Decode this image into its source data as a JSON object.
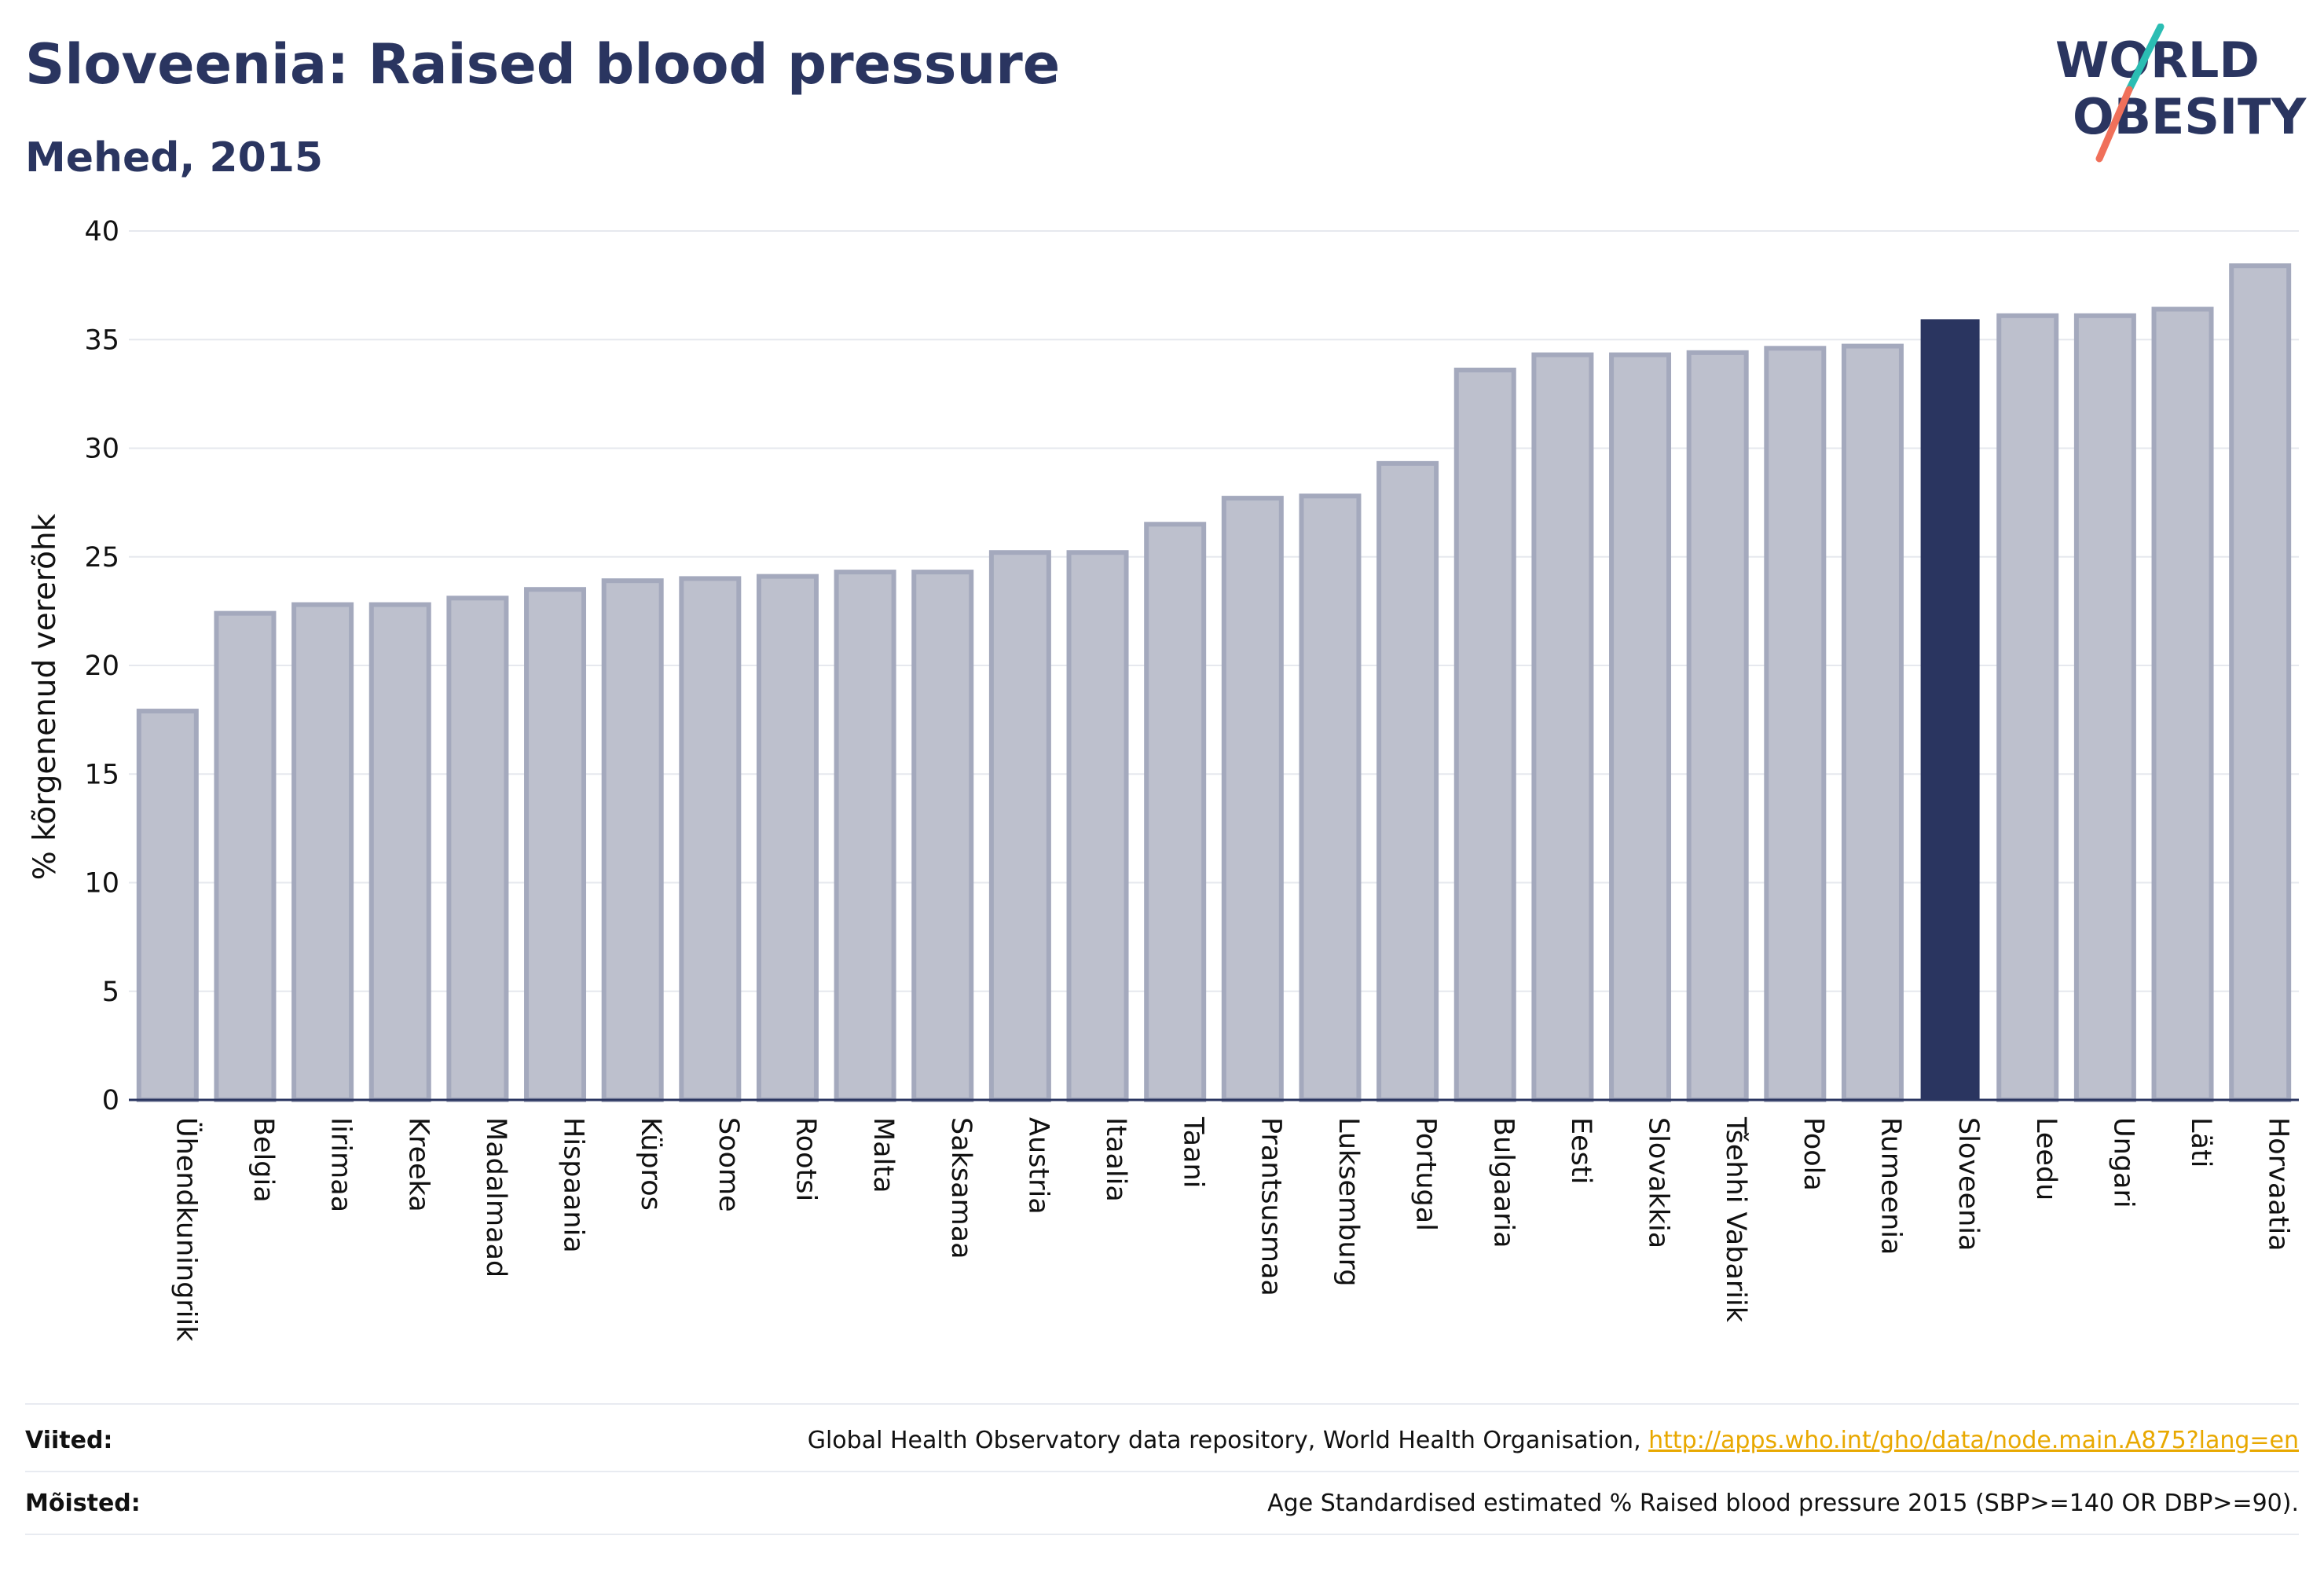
{
  "title": "Sloveenia: Raised blood pressure",
  "subtitle": "Mehed, 2015",
  "logo": {
    "line1": "WORLD",
    "line2": "OBESITY"
  },
  "colors": {
    "bar_default": "#bdc0cd",
    "bar_default_border": "#a4a9bd",
    "bar_highlight": "#2a3560",
    "text_dark": "#2a3560",
    "link": "#e8a800",
    "logo_teal": "#2bbdb3",
    "logo_coral": "#f0705a"
  },
  "chart_data": {
    "type": "bar",
    "ylabel": "% kõrgenenud vererõhk",
    "ylim": [
      0,
      40
    ],
    "yticks": [
      0,
      5,
      10,
      15,
      20,
      25,
      30,
      35,
      40
    ],
    "grid": true,
    "highlight": "Sloveenia",
    "categories": [
      "Ühendkuningriik",
      "Belgia",
      "Iirimaa",
      "Kreeka",
      "Madalmaad",
      "Hispaania",
      "Küpros",
      "Soome",
      "Rootsi",
      "Malta",
      "Saksamaa",
      "Austria",
      "Itaalia",
      "Taani",
      "Prantsusmaa",
      "Luksemburg",
      "Portugal",
      "Bulgaaria",
      "Eesti",
      "Slovakkia",
      "Tšehhi Vabariik",
      "Poola",
      "Rumeenia",
      "Sloveenia",
      "Leedu",
      "Ungari",
      "Läti",
      "Horvaatia"
    ],
    "values": [
      17.9,
      22.4,
      22.8,
      22.8,
      23.1,
      23.5,
      23.9,
      24.0,
      24.1,
      24.3,
      24.3,
      25.2,
      25.2,
      26.5,
      27.7,
      27.8,
      29.3,
      33.6,
      34.3,
      34.3,
      34.4,
      34.6,
      34.7,
      35.9,
      36.1,
      36.1,
      36.4,
      38.4
    ]
  },
  "footer": {
    "sources_label": "Viited:",
    "sources_text": "Global Health Observatory data repository, World Health Organisation, ",
    "sources_link": "http://apps.who.int/gho/data/node.main.A875?lang=en",
    "definitions_label": "Mõisted:",
    "definitions_text": "Age Standardised estimated % Raised blood pressure 2015 (SBP>=140 OR DBP>=90)."
  }
}
